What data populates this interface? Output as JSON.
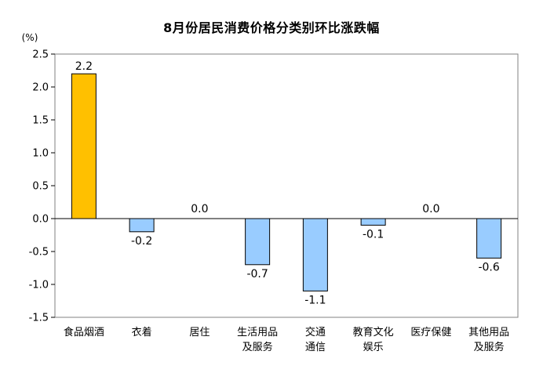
{
  "chart_data": {
    "type": "bar",
    "title": "8月份居民消费价格分类别环比涨跌幅",
    "unit_label": "(%)",
    "categories": [
      [
        "食品烟酒"
      ],
      [
        "衣着"
      ],
      [
        "居住"
      ],
      [
        "生活用品",
        "及服务"
      ],
      [
        "交通",
        "通信"
      ],
      [
        "教育文化",
        "娱乐"
      ],
      [
        "医疗保健"
      ],
      [
        "其他用品",
        "及服务"
      ]
    ],
    "values": [
      2.2,
      -0.2,
      0.0,
      -0.7,
      -1.1,
      -0.1,
      0.0,
      -0.6
    ],
    "value_labels": [
      "2.2",
      "-0.2",
      "0.0",
      "-0.7",
      "-1.1",
      "-0.1",
      "0.0",
      "-0.6"
    ],
    "ylim": [
      -1.5,
      2.5
    ],
    "yticks": [
      2.5,
      2.0,
      1.5,
      1.0,
      0.5,
      0.0,
      -0.5,
      -1.0,
      -1.5
    ],
    "ytick_labels": [
      "2.5",
      "2.0",
      "1.5",
      "1.0",
      "0.5",
      "0.0",
      "-0.5",
      "-1.0",
      "-1.5"
    ],
    "highlight_index": 0,
    "colors": {
      "highlight": "#FFC000",
      "bar": "#99CCFF",
      "bar_edge": "#000000",
      "axis": "#000000",
      "frame": "#808080"
    },
    "grid": false,
    "legend": "none"
  }
}
